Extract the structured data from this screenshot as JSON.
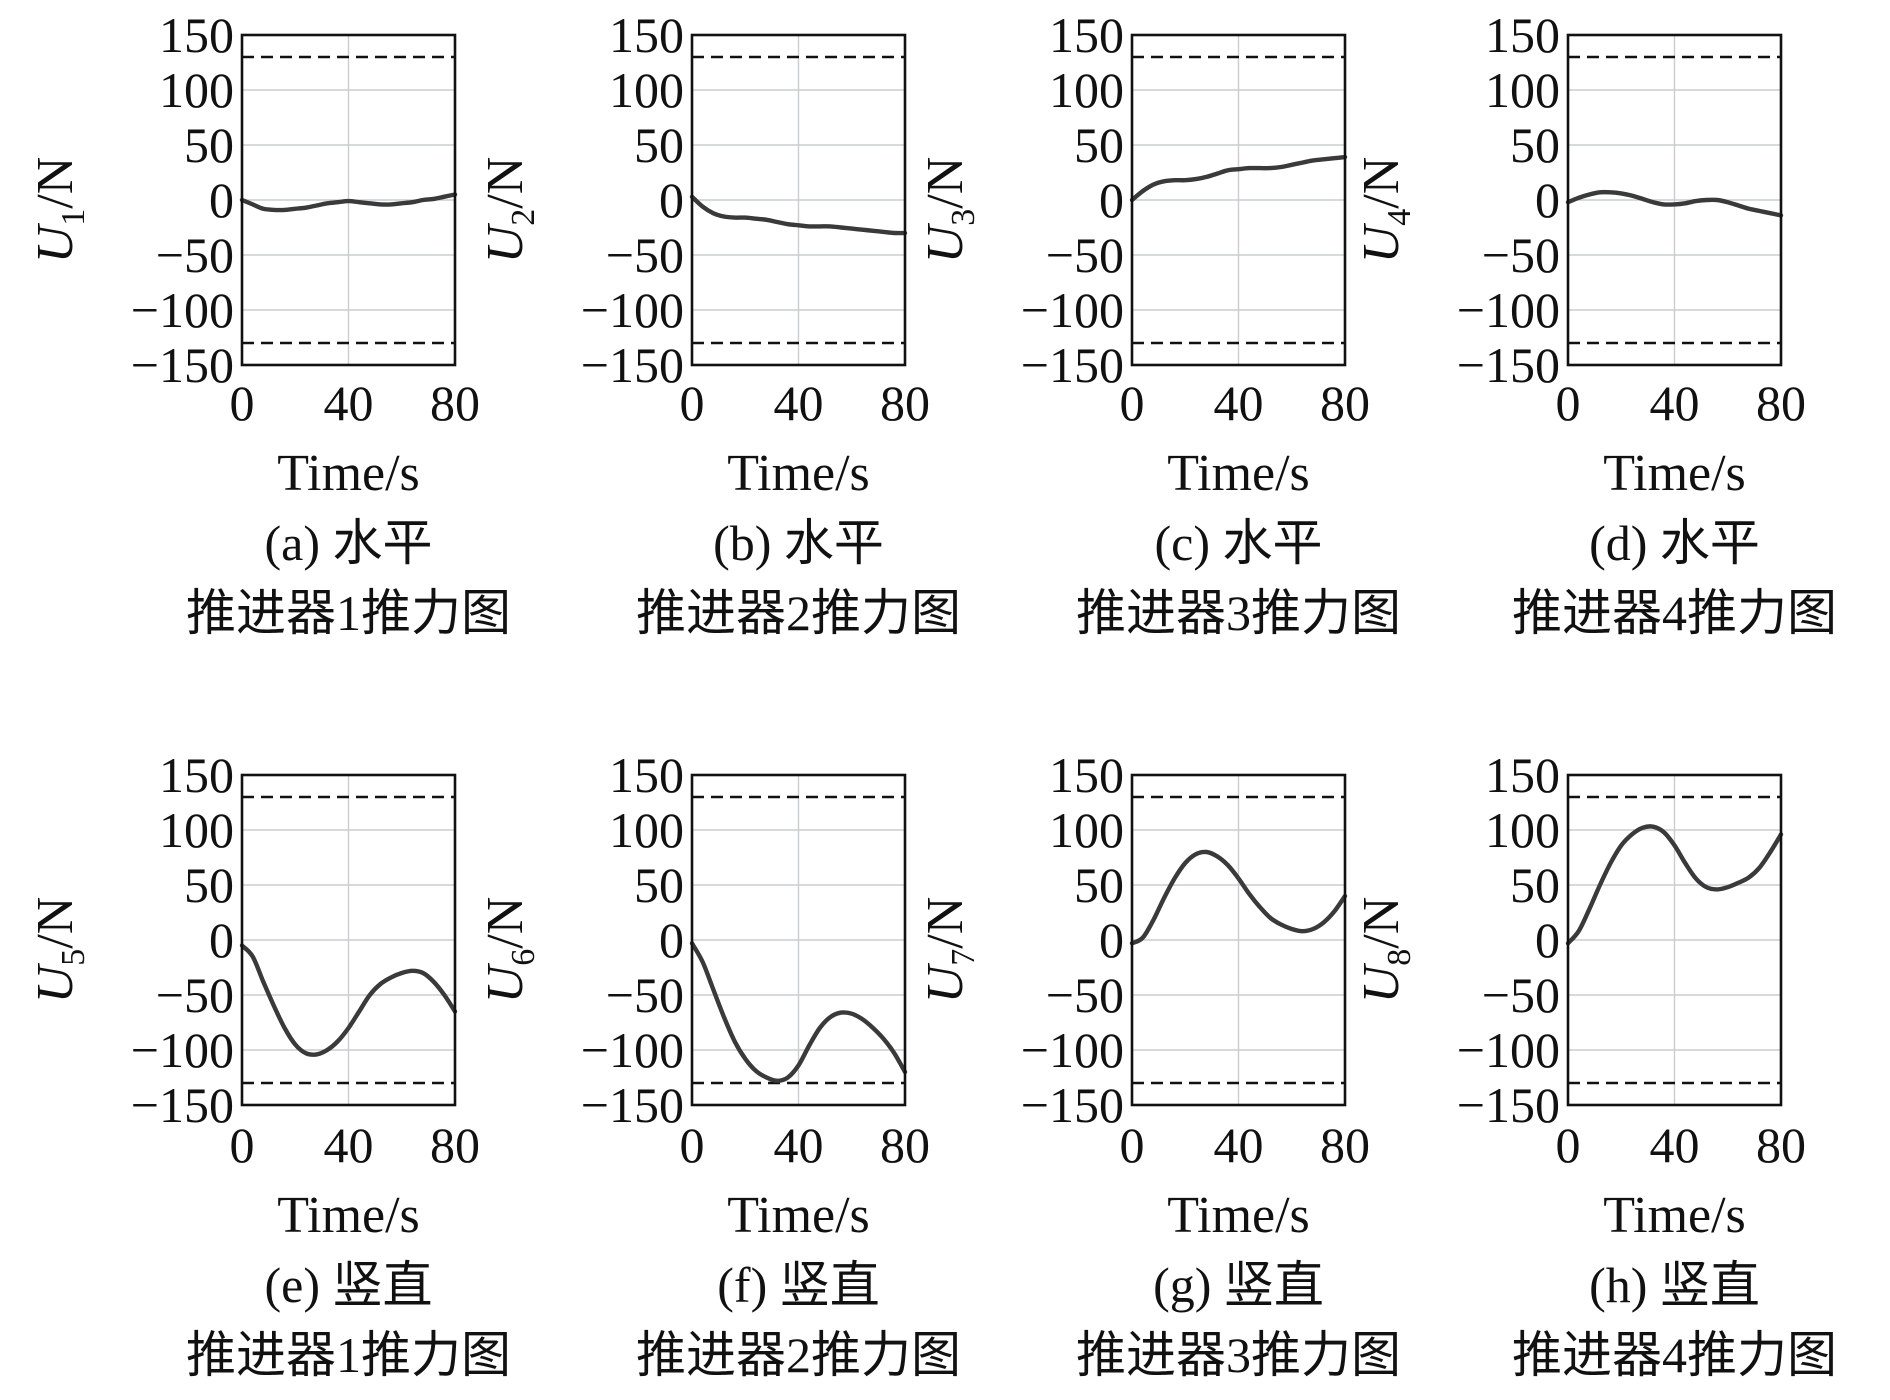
{
  "chart_data": [
    {
      "type": "line",
      "xlabel": "Time/s",
      "ylabel_var": "U",
      "ylabel_sub": "1",
      "ylabel_unit": "/N",
      "caption_line1": "(a) 水平",
      "caption_line2": "推进器1推力图",
      "xlim": [
        0,
        80
      ],
      "ylim": [
        -150,
        150
      ],
      "xticks": [
        "0",
        "40",
        "80"
      ],
      "yticks": [
        "150",
        "100",
        "50",
        "0",
        "−50",
        "−100",
        "−150"
      ],
      "upper_limit": 130,
      "lower_limit": -130,
      "grid": "on",
      "x": [
        0,
        4,
        8,
        12,
        16,
        20,
        24,
        28,
        32,
        36,
        40,
        44,
        48,
        52,
        56,
        60,
        64,
        68,
        72,
        76,
        80
      ],
      "y": [
        0,
        -4,
        -8,
        -9,
        -9,
        -8,
        -7,
        -5,
        -3,
        -2,
        -1,
        -2,
        -3,
        -4,
        -4,
        -3,
        -2,
        0,
        1,
        3,
        5
      ]
    },
    {
      "type": "line",
      "xlabel": "Time/s",
      "ylabel_var": "U",
      "ylabel_sub": "2",
      "ylabel_unit": "/N",
      "caption_line1": "(b) 水平",
      "caption_line2": "推进器2推力图",
      "xlim": [
        0,
        80
      ],
      "ylim": [
        -150,
        150
      ],
      "xticks": [
        "0",
        "40",
        "80"
      ],
      "yticks": [
        "150",
        "100",
        "50",
        "0",
        "−50",
        "−100",
        "−150"
      ],
      "upper_limit": 130,
      "lower_limit": -130,
      "grid": "on",
      "x": [
        0,
        4,
        8,
        12,
        16,
        20,
        24,
        28,
        32,
        36,
        40,
        44,
        48,
        52,
        56,
        60,
        64,
        68,
        72,
        76,
        80
      ],
      "y": [
        3,
        -6,
        -12,
        -15,
        -16,
        -16,
        -17,
        -18,
        -20,
        -22,
        -23,
        -24,
        -24,
        -24,
        -25,
        -26,
        -27,
        -28,
        -29,
        -30,
        -30
      ]
    },
    {
      "type": "line",
      "xlabel": "Time/s",
      "ylabel_var": "U",
      "ylabel_sub": "3",
      "ylabel_unit": "/N",
      "caption_line1": "(c) 水平",
      "caption_line2": "推进器3推力图",
      "xlim": [
        0,
        80
      ],
      "ylim": [
        -150,
        150
      ],
      "xticks": [
        "0",
        "40",
        "80"
      ],
      "yticks": [
        "150",
        "100",
        "50",
        "0",
        "−50",
        "−100",
        "−150"
      ],
      "upper_limit": 130,
      "lower_limit": -130,
      "grid": "on",
      "x": [
        0,
        4,
        8,
        12,
        16,
        20,
        24,
        28,
        32,
        36,
        40,
        44,
        48,
        52,
        56,
        60,
        64,
        68,
        72,
        76,
        80
      ],
      "y": [
        0,
        8,
        14,
        17,
        18,
        18,
        19,
        21,
        24,
        27,
        28,
        29,
        29,
        29,
        30,
        32,
        34,
        36,
        37,
        38,
        39
      ]
    },
    {
      "type": "line",
      "xlabel": "Time/s",
      "ylabel_var": "U",
      "ylabel_sub": "4",
      "ylabel_unit": "/N",
      "caption_line1": "(d) 水平",
      "caption_line2": "推进器4推力图",
      "xlim": [
        0,
        80
      ],
      "ylim": [
        -150,
        150
      ],
      "xticks": [
        "0",
        "40",
        "80"
      ],
      "yticks": [
        "150",
        "100",
        "50",
        "0",
        "−50",
        "−100",
        "−150"
      ],
      "upper_limit": 130,
      "lower_limit": -130,
      "grid": "on",
      "x": [
        0,
        4,
        8,
        12,
        16,
        20,
        24,
        28,
        32,
        36,
        40,
        44,
        48,
        52,
        56,
        60,
        64,
        68,
        72,
        76,
        80
      ],
      "y": [
        -2,
        2,
        5,
        7,
        7,
        6,
        4,
        1,
        -2,
        -4,
        -4,
        -3,
        -1,
        0,
        0,
        -2,
        -5,
        -8,
        -10,
        -12,
        -14
      ]
    },
    {
      "type": "line",
      "xlabel": "Time/s",
      "ylabel_var": "U",
      "ylabel_sub": "5",
      "ylabel_unit": "/N",
      "caption_line1": "(e) 竖直",
      "caption_line2": "推进器1推力图",
      "xlim": [
        0,
        80
      ],
      "ylim": [
        -150,
        150
      ],
      "xticks": [
        "0",
        "40",
        "80"
      ],
      "yticks": [
        "150",
        "100",
        "50",
        "0",
        "−50",
        "−100",
        "−150"
      ],
      "upper_limit": 130,
      "lower_limit": -130,
      "grid": "on",
      "x": [
        0,
        4,
        8,
        12,
        16,
        20,
        24,
        28,
        32,
        36,
        40,
        44,
        48,
        52,
        56,
        60,
        64,
        68,
        72,
        76,
        80
      ],
      "y": [
        -5,
        -15,
        -38,
        -60,
        -80,
        -95,
        -103,
        -104,
        -100,
        -92,
        -80,
        -65,
        -50,
        -40,
        -34,
        -30,
        -28,
        -30,
        -38,
        -50,
        -65
      ]
    },
    {
      "type": "line",
      "xlabel": "Time/s",
      "ylabel_var": "U",
      "ylabel_sub": "6",
      "ylabel_unit": "/N",
      "caption_line1": "(f) 竖直",
      "caption_line2": "推进器2推力图",
      "xlim": [
        0,
        80
      ],
      "ylim": [
        -150,
        150
      ],
      "xticks": [
        "0",
        "40",
        "80"
      ],
      "yticks": [
        "150",
        "100",
        "50",
        "0",
        "−50",
        "−100",
        "−150"
      ],
      "upper_limit": 130,
      "lower_limit": -130,
      "grid": "on",
      "x": [
        0,
        4,
        8,
        12,
        16,
        20,
        24,
        28,
        32,
        36,
        40,
        44,
        48,
        52,
        56,
        60,
        64,
        68,
        72,
        76,
        80
      ],
      "y": [
        -3,
        -20,
        -45,
        -70,
        -92,
        -108,
        -119,
        -125,
        -128,
        -125,
        -114,
        -96,
        -80,
        -70,
        -66,
        -67,
        -72,
        -80,
        -90,
        -103,
        -120
      ]
    },
    {
      "type": "line",
      "xlabel": "Time/s",
      "ylabel_var": "U",
      "ylabel_sub": "7",
      "ylabel_unit": "/N",
      "caption_line1": "(g) 竖直",
      "caption_line2": "推进器3推力图",
      "xlim": [
        0,
        80
      ],
      "ylim": [
        -150,
        150
      ],
      "xticks": [
        "0",
        "40",
        "80"
      ],
      "yticks": [
        "150",
        "100",
        "50",
        "0",
        "−50",
        "−100",
        "−150"
      ],
      "upper_limit": 130,
      "lower_limit": -130,
      "grid": "on",
      "x": [
        0,
        4,
        8,
        12,
        16,
        20,
        24,
        28,
        32,
        36,
        40,
        44,
        48,
        52,
        56,
        60,
        64,
        68,
        72,
        76,
        80
      ],
      "y": [
        -3,
        2,
        18,
        38,
        56,
        70,
        78,
        80,
        76,
        68,
        56,
        42,
        30,
        20,
        14,
        10,
        8,
        10,
        16,
        26,
        40
      ]
    },
    {
      "type": "line",
      "xlabel": "Time/s",
      "ylabel_var": "U",
      "ylabel_sub": "8",
      "ylabel_unit": "/N",
      "caption_line1": "(h) 竖直",
      "caption_line2": "推进器4推力图",
      "xlim": [
        0,
        80
      ],
      "ylim": [
        -150,
        150
      ],
      "xticks": [
        "0",
        "40",
        "80"
      ],
      "yticks": [
        "150",
        "100",
        "50",
        "0",
        "−50",
        "−100",
        "−150"
      ],
      "upper_limit": 130,
      "lower_limit": -130,
      "grid": "on",
      "x": [
        0,
        4,
        8,
        12,
        16,
        20,
        24,
        28,
        32,
        36,
        40,
        44,
        48,
        52,
        56,
        60,
        64,
        68,
        72,
        76,
        80
      ],
      "y": [
        -3,
        8,
        28,
        50,
        70,
        86,
        96,
        102,
        103,
        98,
        86,
        70,
        56,
        48,
        46,
        48,
        52,
        57,
        66,
        80,
        96
      ]
    }
  ]
}
